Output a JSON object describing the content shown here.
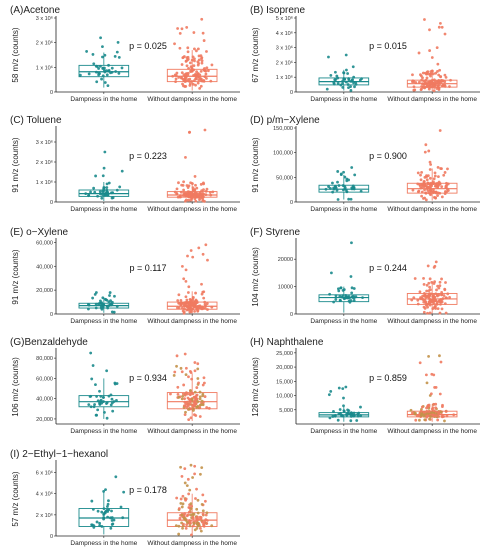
{
  "colors": {
    "damp": "#1a8a8c",
    "nodamp": "#f07a60",
    "nodamp_alt": "#c3924a"
  },
  "chart_data": [
    {
      "type": "boxplot",
      "title": "(A)Acetone",
      "ylabel": "58 m/z (counts)",
      "categories": [
        "Dampness in the home",
        "Without dampness in the home"
      ],
      "ylim": [
        0,
        3000000
      ],
      "ytick_values": [
        0,
        1000000,
        2000000,
        3000000
      ],
      "ytick_labels": [
        "0",
        "1 x 10⁶",
        "2 x 10⁶",
        "3 x 10⁶"
      ],
      "p_value": "p = 0.025",
      "series": [
        {
          "q1": 620000,
          "median": 820000,
          "q3": 1080000,
          "whisker_low": 180000,
          "whisker_high": 1600000,
          "max": 2200000
        },
        {
          "q1": 420000,
          "median": 640000,
          "q3": 920000,
          "whisker_low": 60000,
          "whisker_high": 1700000,
          "max": 2950000
        }
      ]
    },
    {
      "type": "boxplot",
      "title": "(B) Isoprene",
      "ylabel": "67 m/z (counts)",
      "categories": [
        "Dampness in the home",
        "Without dampness in the home"
      ],
      "ylim": [
        0,
        5000000
      ],
      "ytick_values": [
        0,
        1000000,
        2000000,
        3000000,
        4000000,
        5000000
      ],
      "ytick_labels": [
        "0",
        "1 x 10⁶",
        "2 x 10⁶",
        "3 x 10⁶",
        "4 x 10⁶",
        "5 x 10⁶"
      ],
      "p_value": "p = 0.015",
      "series": [
        {
          "q1": 480000,
          "median": 700000,
          "q3": 950000,
          "whisker_low": 100000,
          "whisker_high": 1500000,
          "max": 2500000
        },
        {
          "q1": 330000,
          "median": 560000,
          "q3": 800000,
          "whisker_low": 50000,
          "whisker_high": 1500000,
          "max": 4900000
        }
      ]
    },
    {
      "type": "boxplot",
      "title": "(C) Toluene",
      "ylabel": "91 m/z (counts)",
      "categories": [
        "Dampness in the home",
        "Without dampness in the home"
      ],
      "ylim": [
        0,
        3700000
      ],
      "ytick_values": [
        0,
        1000000,
        2000000,
        3000000
      ],
      "ytick_labels": [
        "0",
        "1 x 10⁶",
        "2 x 10⁶",
        "3 x 10⁶"
      ],
      "p_value": "p = 0.223",
      "series": [
        {
          "q1": 280000,
          "median": 420000,
          "q3": 600000,
          "whisker_low": 50000,
          "whisker_high": 1000000,
          "max": 2500000
        },
        {
          "q1": 240000,
          "median": 350000,
          "q3": 520000,
          "whisker_low": 30000,
          "whisker_high": 1000000,
          "max": 3600000
        }
      ]
    },
    {
      "type": "boxplot",
      "title": "(D) p/m−Xylene",
      "ylabel": "91 m/z (counts)",
      "categories": [
        "Dampness in the home",
        "Without dampness in the home"
      ],
      "ylim": [
        0,
        150000
      ],
      "ytick_values": [
        0,
        50000,
        100000,
        150000
      ],
      "ytick_labels": [
        "0",
        "50,000",
        "100,000",
        "150,000"
      ],
      "p_value": "p = 0.900",
      "series": [
        {
          "q1": 20000,
          "median": 26000,
          "q3": 34000,
          "whisker_low": 5000,
          "whisker_high": 55000,
          "max": 70000
        },
        {
          "q1": 18000,
          "median": 27000,
          "q3": 38000,
          "whisker_low": 3000,
          "whisker_high": 68000,
          "max": 145000
        }
      ]
    },
    {
      "type": "boxplot",
      "title": "(E) o−Xylene",
      "ylabel": "91 m/z (counts)",
      "categories": [
        "Dampness in the home",
        "Without dampness in the home"
      ],
      "ylim": [
        0,
        62000
      ],
      "ytick_values": [
        0,
        20000,
        40000,
        60000
      ],
      "ytick_labels": [
        "0",
        "20,000",
        "40,000",
        "60,000"
      ],
      "p_value": "p = 0.117",
      "series": [
        {
          "q1": 5000,
          "median": 7000,
          "q3": 9000,
          "whisker_low": 1000,
          "whisker_high": 14000,
          "max": 18000
        },
        {
          "q1": 4000,
          "median": 6500,
          "q3": 10000,
          "whisker_low": 500,
          "whisker_high": 19000,
          "max": 58000
        }
      ]
    },
    {
      "type": "boxplot",
      "title": "(F) Styrene",
      "ylabel": "104 m/z (counts)",
      "categories": [
        "Dampness in the home",
        "Without dampness in the home"
      ],
      "ylim": [
        0,
        27000
      ],
      "ytick_values": [
        0,
        10000,
        20000
      ],
      "ytick_labels": [
        "0",
        "10000",
        "20000"
      ],
      "p_value": "p = 0.244",
      "series": [
        {
          "q1": 4500,
          "median": 6000,
          "q3": 7000,
          "whisker_low": 500,
          "whisker_high": 10000,
          "max": 26000
        },
        {
          "q1": 3500,
          "median": 5500,
          "q3": 7500,
          "whisker_low": 200,
          "whisker_high": 12000,
          "max": 19000
        }
      ]
    },
    {
      "type": "boxplot",
      "title": "(G)Benzaldehyde",
      "ylabel": "106 m/z (counts)",
      "categories": [
        "Dampness in the home",
        "Without dampness in the home"
      ],
      "ylim": [
        15000,
        88000
      ],
      "ytick_values": [
        20000,
        40000,
        60000,
        80000
      ],
      "ytick_labels": [
        "20,000",
        "40,000",
        "60,000",
        "80,000"
      ],
      "p_value": "p = 0.934",
      "series": [
        {
          "q1": 32000,
          "median": 37000,
          "q3": 43000,
          "whisker_low": 20000,
          "whisker_high": 60000,
          "max": 85000
        },
        {
          "q1": 30000,
          "median": 37000,
          "q3": 46000,
          "whisker_low": 18000,
          "whisker_high": 65000,
          "max": 84000
        }
      ]
    },
    {
      "type": "boxplot",
      "title": "(H) Naphthalene",
      "ylabel": "128 m/z (counts)",
      "categories": [
        "Dampness in the home",
        "Without dampness in the home"
      ],
      "ylim": [
        0,
        26000
      ],
      "ytick_values": [
        5000,
        10000,
        15000,
        20000,
        25000
      ],
      "ytick_labels": [
        "5,000",
        "10,000",
        "15,000",
        "20,000",
        "25,000"
      ],
      "p_value": "p = 0.859",
      "series": [
        {
          "q1": 2500,
          "median": 3200,
          "q3": 4000,
          "whisker_low": 800,
          "whisker_high": 6000,
          "max": 13000
        },
        {
          "q1": 2500,
          "median": 3300,
          "q3": 4500,
          "whisker_low": 800,
          "whisker_high": 7000,
          "max": 24000
        }
      ]
    },
    {
      "type": "boxplot",
      "title": "(I) 2−Ethyl−1−hexanol",
      "ylabel": "57 m/z (counts)",
      "categories": [
        "Dampness in the home",
        "Without dampness in the home"
      ],
      "ylim": [
        0,
        7000000
      ],
      "ytick_values": [
        0,
        2000000,
        4000000,
        6000000
      ],
      "ytick_labels": [
        "0",
        "2 x 10⁶",
        "4 x 10⁶",
        "6 x 10⁶"
      ],
      "p_value": "p = 0.178",
      "series": [
        {
          "q1": 900000,
          "median": 1700000,
          "q3": 2600000,
          "whisker_low": 150000,
          "whisker_high": 4200000,
          "max": 5600000
        },
        {
          "q1": 900000,
          "median": 1500000,
          "q3": 2200000,
          "whisker_low": 100000,
          "whisker_high": 4000000,
          "max": 6700000
        }
      ]
    }
  ]
}
